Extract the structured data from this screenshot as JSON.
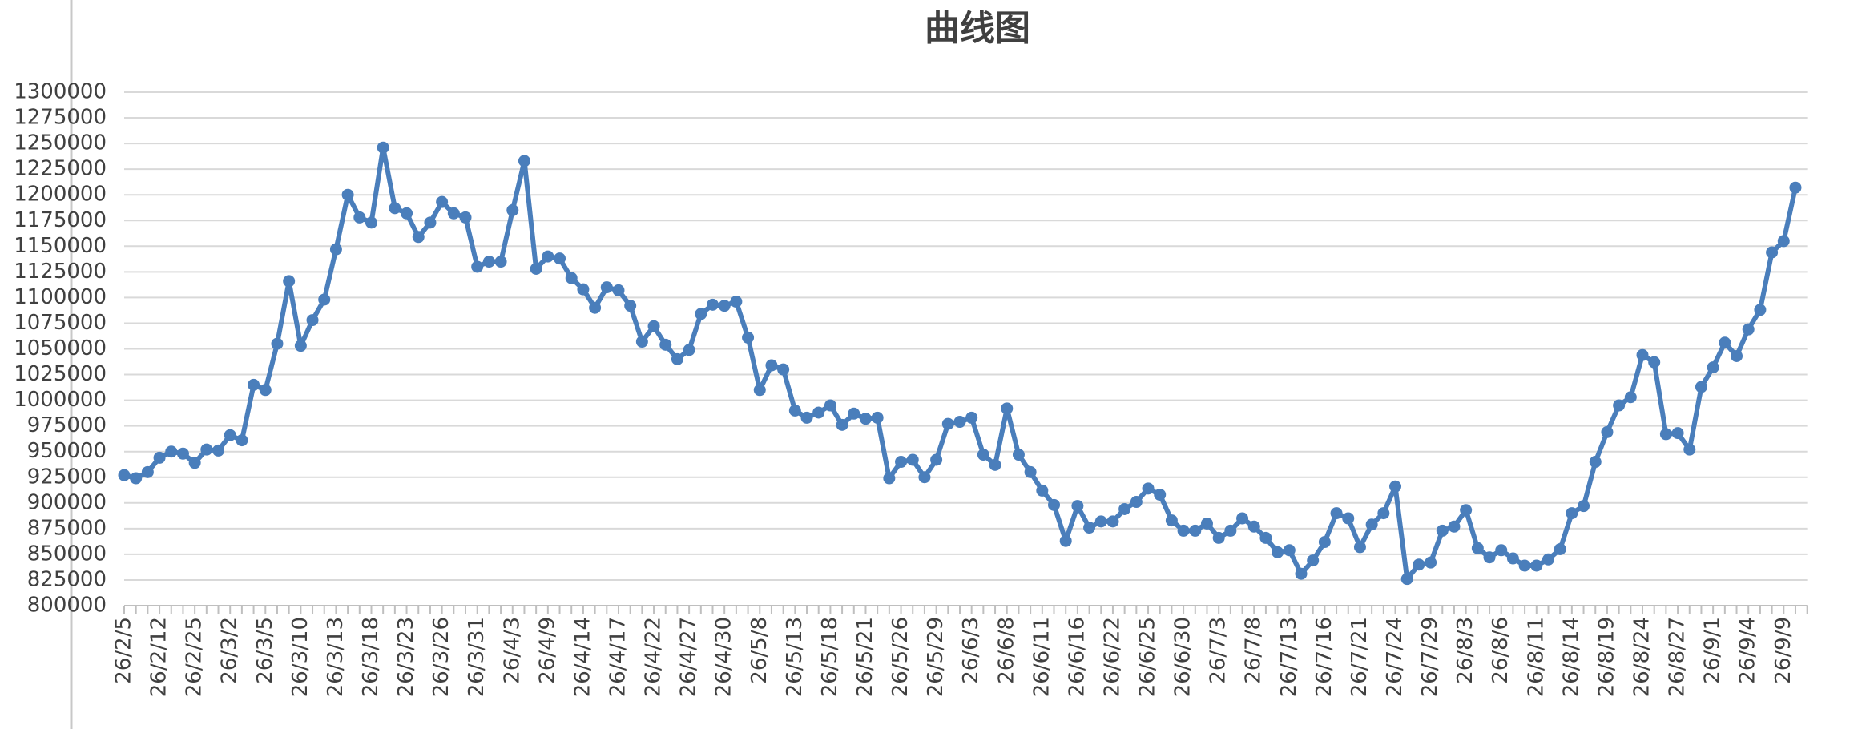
{
  "chart_data": {
    "type": "line",
    "title": "曲线图",
    "color": "#4a7ebb",
    "grid": true,
    "ylim": [
      800000,
      1300000
    ],
    "yticks": [
      800000,
      825000,
      850000,
      875000,
      900000,
      925000,
      950000,
      975000,
      1000000,
      1025000,
      1050000,
      1075000,
      1100000,
      1125000,
      1150000,
      1175000,
      1200000,
      1225000,
      1250000,
      1275000,
      1300000
    ],
    "categories": [
      "26/2/5",
      null,
      null,
      "26/2/12",
      null,
      null,
      "26/2/25",
      null,
      null,
      "26/3/2",
      null,
      null,
      "26/3/5",
      null,
      null,
      "26/3/10",
      null,
      null,
      "26/3/13",
      null,
      null,
      "26/3/18",
      null,
      null,
      "26/3/23",
      null,
      null,
      "26/3/26",
      null,
      null,
      "26/3/31",
      null,
      null,
      "26/4/3",
      null,
      null,
      "26/4/9",
      null,
      null,
      "26/4/14",
      null,
      null,
      "26/4/17",
      null,
      null,
      "26/4/22",
      null,
      null,
      "26/4/27",
      null,
      null,
      "26/4/30",
      null,
      null,
      "26/5/8",
      null,
      null,
      "26/5/13",
      null,
      null,
      "26/5/18",
      null,
      null,
      "26/5/21",
      null,
      null,
      "26/5/26",
      null,
      null,
      "26/5/29",
      null,
      null,
      "26/6/3",
      null,
      null,
      "26/6/8",
      null,
      null,
      "26/6/11",
      null,
      null,
      "26/6/16",
      null,
      null,
      "26/6/22",
      null,
      null,
      "26/6/25",
      null,
      null,
      "26/6/30",
      null,
      null,
      "26/7/3",
      null,
      null,
      "26/7/8",
      null,
      null,
      "26/7/13",
      null,
      null,
      "26/7/16",
      null,
      null,
      "26/7/21",
      null,
      null,
      "26/7/24",
      null,
      null,
      "26/7/29",
      null,
      null,
      "26/8/3",
      null,
      null,
      "26/8/6",
      null,
      null,
      "26/8/11",
      null,
      null,
      "26/8/14",
      null,
      null,
      "26/8/19",
      null,
      null,
      "26/8/24",
      null,
      null,
      "26/8/27",
      null,
      null,
      "26/9/1",
      null,
      null,
      "26/9/4",
      null,
      null,
      "26/9/9",
      null
    ],
    "values": [
      927000,
      924000,
      930000,
      944000,
      950000,
      948000,
      939000,
      952000,
      951000,
      966000,
      961000,
      1015000,
      1010000,
      1055000,
      1116000,
      1053000,
      1078000,
      1098000,
      1147000,
      1200000,
      1178000,
      1173000,
      1246000,
      1187000,
      1182000,
      1159000,
      1173000,
      1193000,
      1182000,
      1178000,
      1130000,
      1135000,
      1135000,
      1185000,
      1233000,
      1128000,
      1140000,
      1138000,
      1119000,
      1108000,
      1090000,
      1110000,
      1107000,
      1092000,
      1057000,
      1072000,
      1054000,
      1040000,
      1049000,
      1084000,
      1093000,
      1092000,
      1096000,
      1061000,
      1010000,
      1034000,
      1030000,
      990000,
      983000,
      988000,
      995000,
      976000,
      987000,
      982000,
      983000,
      924000,
      940000,
      942000,
      925000,
      942000,
      977000,
      979000,
      983000,
      947000,
      937000,
      992000,
      947000,
      930000,
      912000,
      898000,
      863000,
      897000,
      876000,
      882000,
      882000,
      894000,
      901000,
      914000,
      908000,
      883000,
      873000,
      873000,
      880000,
      866000,
      873000,
      885000,
      877000,
      866000,
      852000,
      854000,
      831000,
      844000,
      862000,
      890000,
      885000,
      857000,
      879000,
      890000,
      916000,
      826000,
      840000,
      842000,
      873000,
      877000,
      893000,
      856000,
      847000,
      854000,
      846000,
      839000,
      839000,
      845000,
      855000,
      890000,
      897000,
      940000,
      969000,
      995000,
      1003000,
      1044000,
      1037000,
      967000,
      968000,
      952000,
      1013000,
      1032000,
      1056000,
      1043000,
      1069000,
      1088000,
      1144000,
      1155000,
      1207000
    ]
  }
}
